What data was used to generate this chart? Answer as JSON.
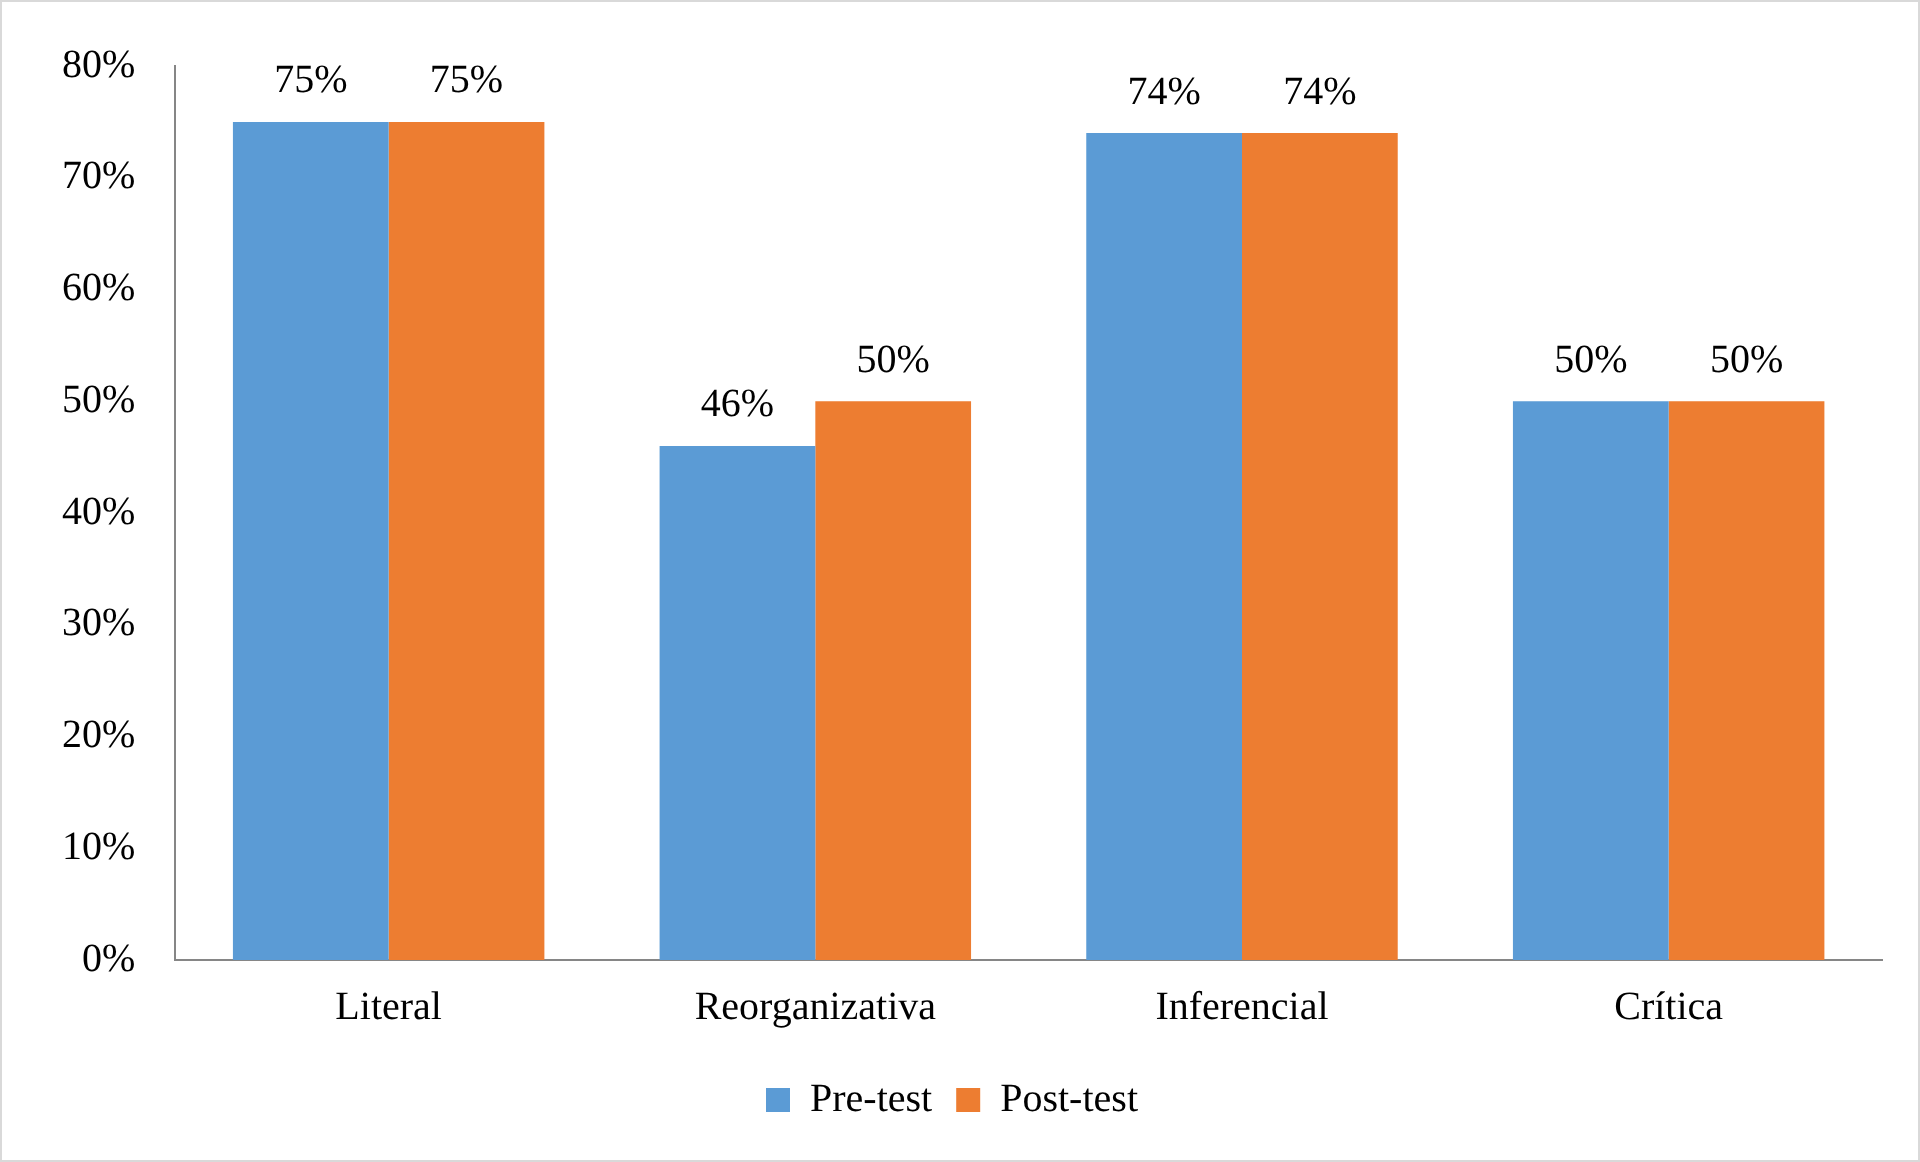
{
  "chart_data": {
    "type": "bar",
    "categories": [
      "Literal",
      "Reorganizativa",
      "Inferencial",
      "Crítica"
    ],
    "series": [
      {
        "name": "Pre-test",
        "color": "#5b9bd5",
        "values": [
          75,
          46,
          74,
          50
        ],
        "value_labels": [
          "75%",
          "46%",
          "74%",
          "50%"
        ]
      },
      {
        "name": "Post-test",
        "color": "#ed7d31",
        "values": [
          75,
          50,
          74,
          50
        ],
        "value_labels": [
          "75%",
          "50%",
          "74%",
          "50%"
        ]
      }
    ],
    "ylim": [
      0,
      80
    ],
    "yticks": [
      {
        "value": 0,
        "label": "0%"
      },
      {
        "value": 10,
        "label": "10%"
      },
      {
        "value": 20,
        "label": "20%"
      },
      {
        "value": 30,
        "label": "30%"
      },
      {
        "value": 40,
        "label": "40%"
      },
      {
        "value": 50,
        "label": "50%"
      },
      {
        "value": 60,
        "label": "60%"
      },
      {
        "value": 70,
        "label": "70%"
      },
      {
        "value": 80,
        "label": "80%"
      }
    ],
    "grid": false,
    "legend": "bottom"
  }
}
